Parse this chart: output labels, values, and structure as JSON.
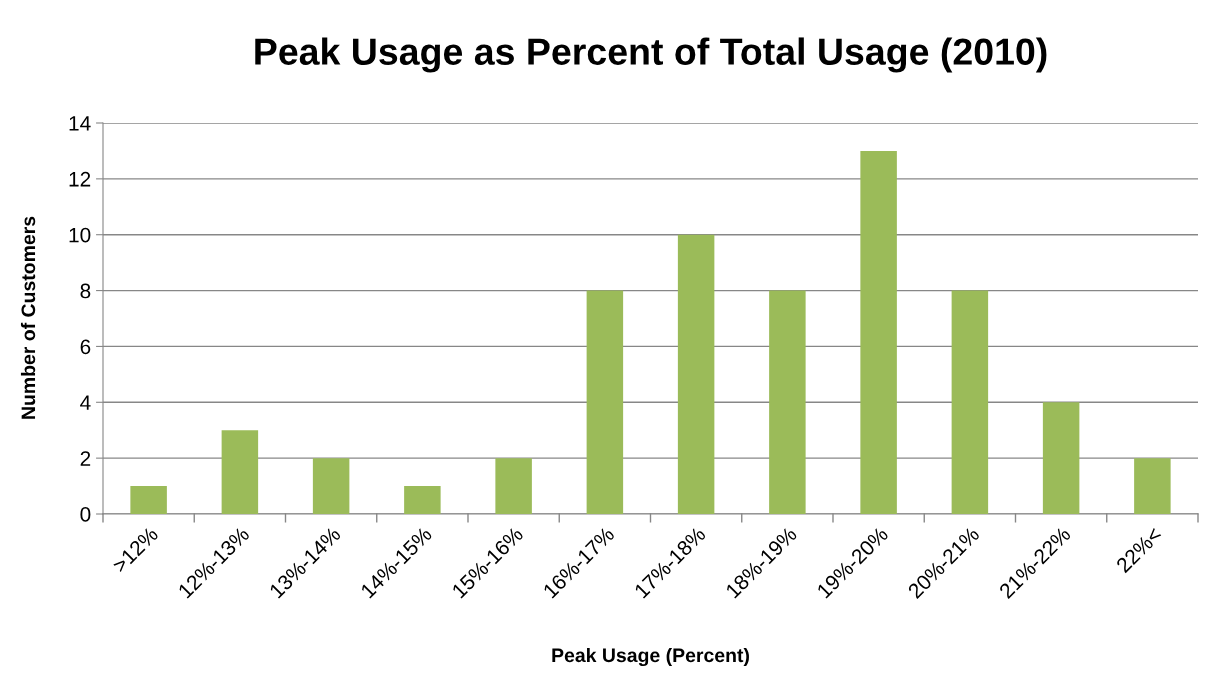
{
  "chart_data": {
    "type": "bar",
    "title": "Peak Usage as Percent of Total Usage (2010)",
    "xlabel": "Peak Usage (Percent)",
    "ylabel": "Number of Customers",
    "categories": [
      ">12%",
      "12%-13%",
      "13%-14%",
      "14%-15%",
      "15%-16%",
      "16%-17%",
      "17%-18%",
      "18%-19%",
      "19%-20%",
      "20%-21%",
      "21%-22%",
      "22%<"
    ],
    "values": [
      1,
      3,
      2,
      1,
      2,
      8,
      10,
      8,
      13,
      8,
      4,
      2
    ],
    "color": "#9bbb59",
    "ylim": [
      0,
      14
    ],
    "yticks": [
      0,
      2,
      4,
      6,
      8,
      10,
      12,
      14
    ],
    "grid": "y"
  }
}
